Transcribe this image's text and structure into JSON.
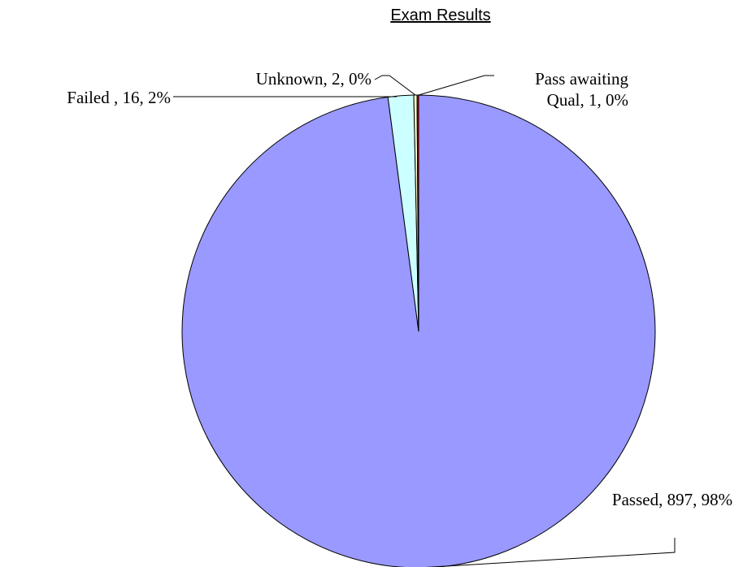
{
  "chart_data": {
    "type": "pie",
    "title": "Exam Results",
    "values": [
      897,
      16,
      2,
      1
    ],
    "value_labels": [
      "Passed, 897, 98%",
      "Failed , 16, 2%",
      "Unknown, 2, 0%",
      "Pass awaiting Qual, 1, 0%"
    ],
    "colors": [
      "#9999ff",
      "#ccffff",
      "#ffffcc",
      "#cc0000"
    ]
  }
}
